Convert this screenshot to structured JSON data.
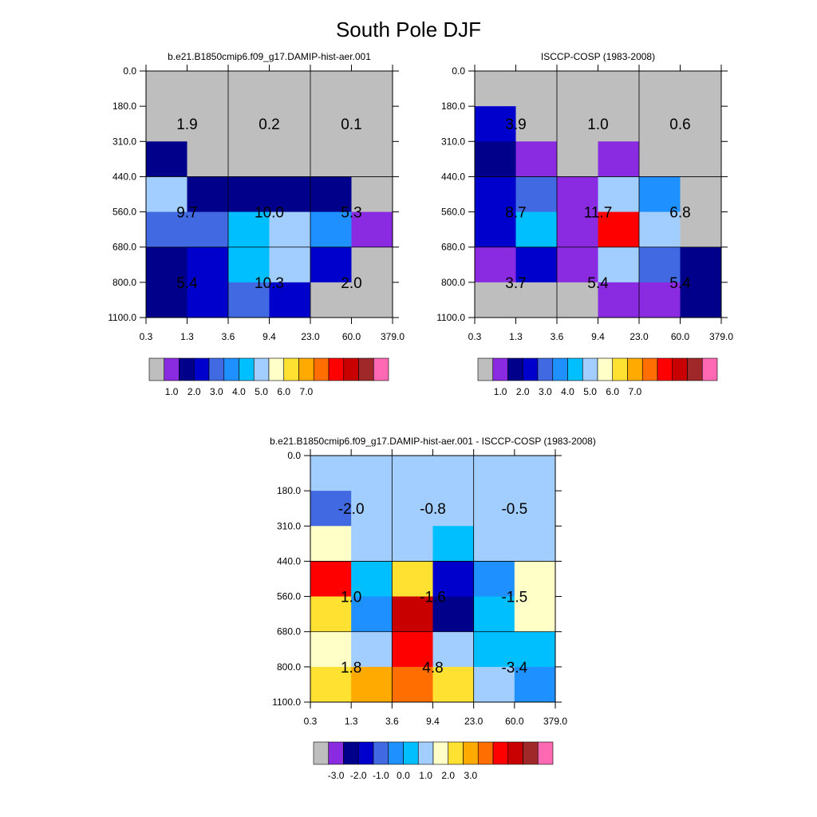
{
  "title": "South Pole DJF",
  "chart_data": [
    {
      "type": "heatmap",
      "title": "b.e21.B1850cmip6.f09_g17.DAMIP-hist-aer.001",
      "xticks": [
        "0.3",
        "1.3",
        "3.6",
        "9.4",
        "23.0",
        "60.0",
        "379.0"
      ],
      "yticks": [
        "0.0",
        "180.0",
        "310.0",
        "440.0",
        "560.0",
        "680.0",
        "800.0",
        "1100.0"
      ],
      "grid": true,
      "cell_colors": [
        [
          "#bebebe",
          "#bebebe",
          "#bebebe",
          "#bebebe",
          "#bebebe",
          "#bebebe"
        ],
        [
          "#bebebe",
          "#bebebe",
          "#bebebe",
          "#bebebe",
          "#bebebe",
          "#bebebe"
        ],
        [
          "#00008b",
          "#bebebe",
          "#bebebe",
          "#bebebe",
          "#bebebe",
          "#bebebe"
        ],
        [
          "#a2cdff",
          "#00008b",
          "#00008b",
          "#00008b",
          "#00008b",
          "#bebebe"
        ],
        [
          "#4169e1",
          "#4169e1",
          "#00bfff",
          "#a2cdff",
          "#1e90ff",
          "#8a2be2"
        ],
        [
          "#00008b",
          "#0000cd",
          "#00bfff",
          "#a2cdff",
          "#0000cd",
          "#bebebe"
        ],
        [
          "#00008b",
          "#0000cd",
          "#4169e1",
          "#0000cd",
          "#bebebe",
          "#bebebe"
        ]
      ],
      "labels": [
        [
          "1.9",
          "0.2",
          "0.1"
        ],
        [
          "9.7",
          "10.0",
          "5.3"
        ],
        [
          "5.4",
          "10.3",
          "2.0"
        ]
      ],
      "colorbar": {
        "colors": [
          "#bebebe",
          "#8a2be2",
          "#00008b",
          "#0000cd",
          "#4169e1",
          "#1e90ff",
          "#00bfff",
          "#a2cdff",
          "#ffffc8",
          "#ffe132",
          "#ffaa00",
          "#ff6e00",
          "#ff0000",
          "#c80000",
          "#a02828",
          "#ff69b4"
        ],
        "labels": [
          "1.0",
          "2.0",
          "3.0",
          "4.0",
          "5.0",
          "6.0",
          "7.0"
        ]
      }
    },
    {
      "type": "heatmap",
      "title": "ISCCP-COSP (1983-2008)",
      "xticks": [
        "0.3",
        "1.3",
        "3.6",
        "9.4",
        "23.0",
        "60.0",
        "379.0"
      ],
      "yticks": [
        "0.0",
        "180.0",
        "310.0",
        "440.0",
        "560.0",
        "680.0",
        "800.0",
        "1100.0"
      ],
      "grid": true,
      "cell_colors": [
        [
          "#bebebe",
          "#bebebe",
          "#bebebe",
          "#bebebe",
          "#bebebe",
          "#bebebe"
        ],
        [
          "#0000cd",
          "#bebebe",
          "#bebebe",
          "#bebebe",
          "#bebebe",
          "#bebebe"
        ],
        [
          "#00008b",
          "#8a2be2",
          "#bebebe",
          "#8a2be2",
          "#bebebe",
          "#bebebe"
        ],
        [
          "#0000cd",
          "#4169e1",
          "#8a2be2",
          "#a2cdff",
          "#1e90ff",
          "#bebebe"
        ],
        [
          "#0000cd",
          "#00bfff",
          "#8a2be2",
          "#ff0000",
          "#a2cdff",
          "#bebebe"
        ],
        [
          "#8a2be2",
          "#0000cd",
          "#8a2be2",
          "#a2cdff",
          "#4169e1",
          "#00008b"
        ],
        [
          "#bebebe",
          "#bebebe",
          "#bebebe",
          "#8a2be2",
          "#8a2be2",
          "#00008b"
        ]
      ],
      "labels": [
        [
          "3.9",
          "1.0",
          "0.6"
        ],
        [
          "8.7",
          "11.7",
          "6.8"
        ],
        [
          "3.7",
          "5.4",
          "5.4"
        ]
      ],
      "colorbar": {
        "colors": [
          "#bebebe",
          "#8a2be2",
          "#00008b",
          "#0000cd",
          "#4169e1",
          "#1e90ff",
          "#00bfff",
          "#a2cdff",
          "#ffffc8",
          "#ffe132",
          "#ffaa00",
          "#ff6e00",
          "#ff0000",
          "#c80000",
          "#a02828",
          "#ff69b4"
        ],
        "labels": [
          "1.0",
          "2.0",
          "3.0",
          "4.0",
          "5.0",
          "6.0",
          "7.0"
        ]
      }
    },
    {
      "type": "heatmap",
      "title": "b.e21.B1850cmip6.f09_g17.DAMIP-hist-aer.001 - ISCCP-COSP (1983-2008)",
      "xticks": [
        "0.3",
        "1.3",
        "3.6",
        "9.4",
        "23.0",
        "60.0",
        "379.0"
      ],
      "yticks": [
        "0.0",
        "180.0",
        "310.0",
        "440.0",
        "560.0",
        "680.0",
        "800.0",
        "1100.0"
      ],
      "grid": true,
      "cell_colors": [
        [
          "#a2cdff",
          "#a2cdff",
          "#a2cdff",
          "#a2cdff",
          "#a2cdff",
          "#a2cdff"
        ],
        [
          "#4169e1",
          "#a2cdff",
          "#a2cdff",
          "#a2cdff",
          "#a2cdff",
          "#a2cdff"
        ],
        [
          "#ffffc8",
          "#a2cdff",
          "#a2cdff",
          "#00bfff",
          "#a2cdff",
          "#a2cdff"
        ],
        [
          "#ff0000",
          "#00bfff",
          "#ffe132",
          "#0000cd",
          "#1e90ff",
          "#ffffc8"
        ],
        [
          "#ffe132",
          "#1e90ff",
          "#c80000",
          "#00008b",
          "#00bfff",
          "#ffffc8"
        ],
        [
          "#ffffc8",
          "#a2cdff",
          "#ff0000",
          "#a2cdff",
          "#00bfff",
          "#00bfff"
        ],
        [
          "#ffe132",
          "#ffaa00",
          "#ff6e00",
          "#ffe132",
          "#a2cdff",
          "#1e90ff"
        ]
      ],
      "labels": [
        [
          "-2.0",
          "-0.8",
          "-0.5"
        ],
        [
          "1.0",
          "-1.6",
          "-1.5"
        ],
        [
          "1.8",
          "4.8",
          "-3.4"
        ]
      ],
      "colorbar": {
        "colors": [
          "#bebebe",
          "#8a2be2",
          "#00008b",
          "#0000cd",
          "#4169e1",
          "#1e90ff",
          "#00bfff",
          "#a2cdff",
          "#ffffc8",
          "#ffe132",
          "#ffaa00",
          "#ff6e00",
          "#ff0000",
          "#c80000",
          "#a02828",
          "#ff69b4"
        ],
        "labels": [
          "-3.0",
          "-2.0",
          "-1.0",
          "0.0",
          "1.0",
          "2.0",
          "3.0"
        ]
      }
    }
  ]
}
